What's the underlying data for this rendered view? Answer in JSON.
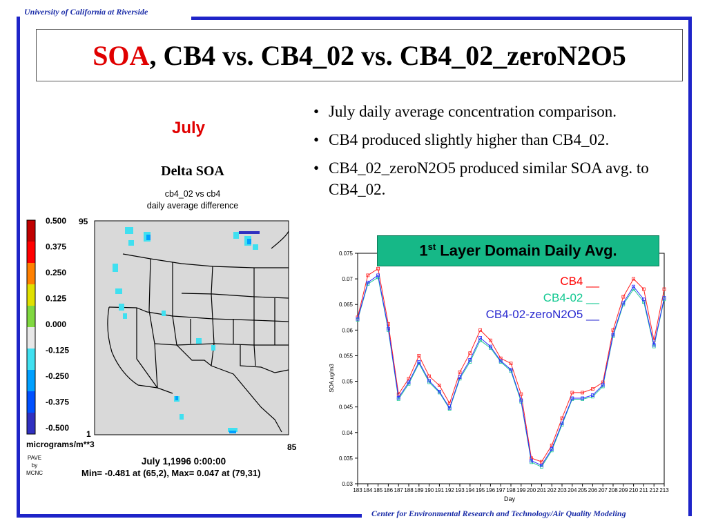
{
  "header": {
    "org": "University of California at Riverside"
  },
  "footer": {
    "org": "Center for Environmental Research and Technology/Air Quality Modeling"
  },
  "title": {
    "accent": "SOA",
    "rest": ", CB4 vs. CB4_02 vs. CB4_02_zeroN2O5"
  },
  "month_label": "July",
  "bullets": [
    "July daily average concentration comparison.",
    "CB4 produced slightly higher than CB4_02.",
    "CB4_02_zeroN2O5 produced similar SOA avg. to CB4_02."
  ],
  "colors": {
    "frame": "#1e24c8",
    "accent": "#e00000",
    "chart_title_bg": "#16b887",
    "cb4": "#ff2020",
    "cb402": "#20c898",
    "zero": "#2a2aff"
  },
  "map": {
    "title": "Delta SOA",
    "subtitle1": "cb4_02 vs cb4",
    "subtitle2": "daily average difference",
    "colorbar_labels": [
      "0.500",
      "0.375",
      "0.250",
      "0.125",
      "0.000",
      "-0.125",
      "-0.250",
      "-0.375",
      "-0.500"
    ],
    "colorbar_colors": [
      "#c00000",
      "#ff0000",
      "#ff8000",
      "#e0e000",
      "#80d840",
      "#e8e8e8",
      "#40e0f0",
      "#00a0ff",
      "#0050ff",
      "#3030c0"
    ],
    "units": "micrograms/m**3",
    "y_top": "95",
    "y_bottom": "1",
    "x_right": "85",
    "date": "July 1,1996 0:00:00",
    "minmax": "Min=  -0.481 at (65,2), Max=   0.047 at (79,31)",
    "pave_lines": [
      "PAVE",
      "by",
      "MCNC"
    ]
  },
  "chart_title": {
    "prefix": "1",
    "sup": "st",
    "rest": " Layer Domain Daily Avg."
  },
  "legend": {
    "cb4": "CB4 __",
    "cb402": "CB4-02 __",
    "zero": "CB4-02-zeroN2O5 __"
  },
  "chart_data": {
    "type": "line",
    "x": [
      183,
      184,
      185,
      186,
      187,
      188,
      189,
      190,
      191,
      192,
      193,
      194,
      195,
      196,
      197,
      198,
      199,
      200,
      201,
      202,
      203,
      204,
      205,
      206,
      207,
      208,
      209,
      210,
      211,
      212,
      213
    ],
    "xlabel": "Day",
    "ylabel": "SOA,ug/m3",
    "ylim": [
      0.03,
      0.075
    ],
    "yticks": [
      "0.03",
      "0.035",
      "0.04",
      "0.045",
      "0.05",
      "0.055",
      "0.06",
      "0.065",
      "0.07",
      "0.075"
    ],
    "series": [
      {
        "name": "CB4",
        "values": [
          0.0625,
          0.0707,
          0.072,
          0.0612,
          0.0475,
          0.0505,
          0.055,
          0.051,
          0.0492,
          0.0457,
          0.0518,
          0.0555,
          0.06,
          0.058,
          0.0545,
          0.0535,
          0.0475,
          0.035,
          0.0343,
          0.0375,
          0.0428,
          0.0478,
          0.0478,
          0.0485,
          0.0498,
          0.06,
          0.0665,
          0.07,
          0.068,
          0.058,
          0.068
        ]
      },
      {
        "name": "CB4-02",
        "values": [
          0.062,
          0.069,
          0.0703,
          0.06,
          0.0465,
          0.0495,
          0.0535,
          0.0498,
          0.0478,
          0.0446,
          0.0505,
          0.0538,
          0.058,
          0.0565,
          0.0538,
          0.052,
          0.046,
          0.0342,
          0.0333,
          0.0365,
          0.0415,
          0.0465,
          0.0465,
          0.047,
          0.049,
          0.0588,
          0.065,
          0.068,
          0.0655,
          0.0568,
          0.066
        ]
      },
      {
        "name": "CB4-02-zeroN2O5",
        "values": [
          0.0622,
          0.0693,
          0.0707,
          0.0603,
          0.0468,
          0.0498,
          0.0538,
          0.0501,
          0.048,
          0.0448,
          0.0508,
          0.0542,
          0.0585,
          0.0568,
          0.054,
          0.0523,
          0.0463,
          0.0345,
          0.0336,
          0.0368,
          0.0418,
          0.0467,
          0.0467,
          0.0473,
          0.0493,
          0.0591,
          0.0653,
          0.0685,
          0.066,
          0.0571,
          0.0663
        ]
      }
    ]
  }
}
